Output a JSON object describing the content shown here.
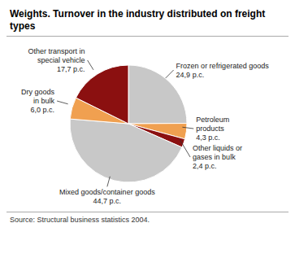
{
  "chart_data": {
    "type": "pie",
    "title": "Weights. Turnover in the industry distributed on freight types",
    "categories": [
      "Frozen or refrigerated goods",
      "Petroleum\nproducts",
      "Other liquids or\ngases in bulk",
      "Mixed goods/container goods",
      "Dry goods\nin bulk",
      "Other transport in\nspecial vehicle"
    ],
    "values": [
      24.9,
      4.3,
      2.4,
      44.7,
      6.0,
      17.7
    ],
    "value_labels": [
      "24,9 p.c.",
      "4,3 p.c.",
      "2,4 p.c.",
      "44,7 p.c.",
      "6,0 p.c.",
      "17,7 p.c."
    ],
    "data_labels": true,
    "colors": [
      "#c8c8c8",
      "#f0a050",
      "#8b1010",
      "#c8c8c8",
      "#f0a050",
      "#8b1010"
    ],
    "annotations": [
      "Source: Structural business statistics 2004."
    ]
  }
}
